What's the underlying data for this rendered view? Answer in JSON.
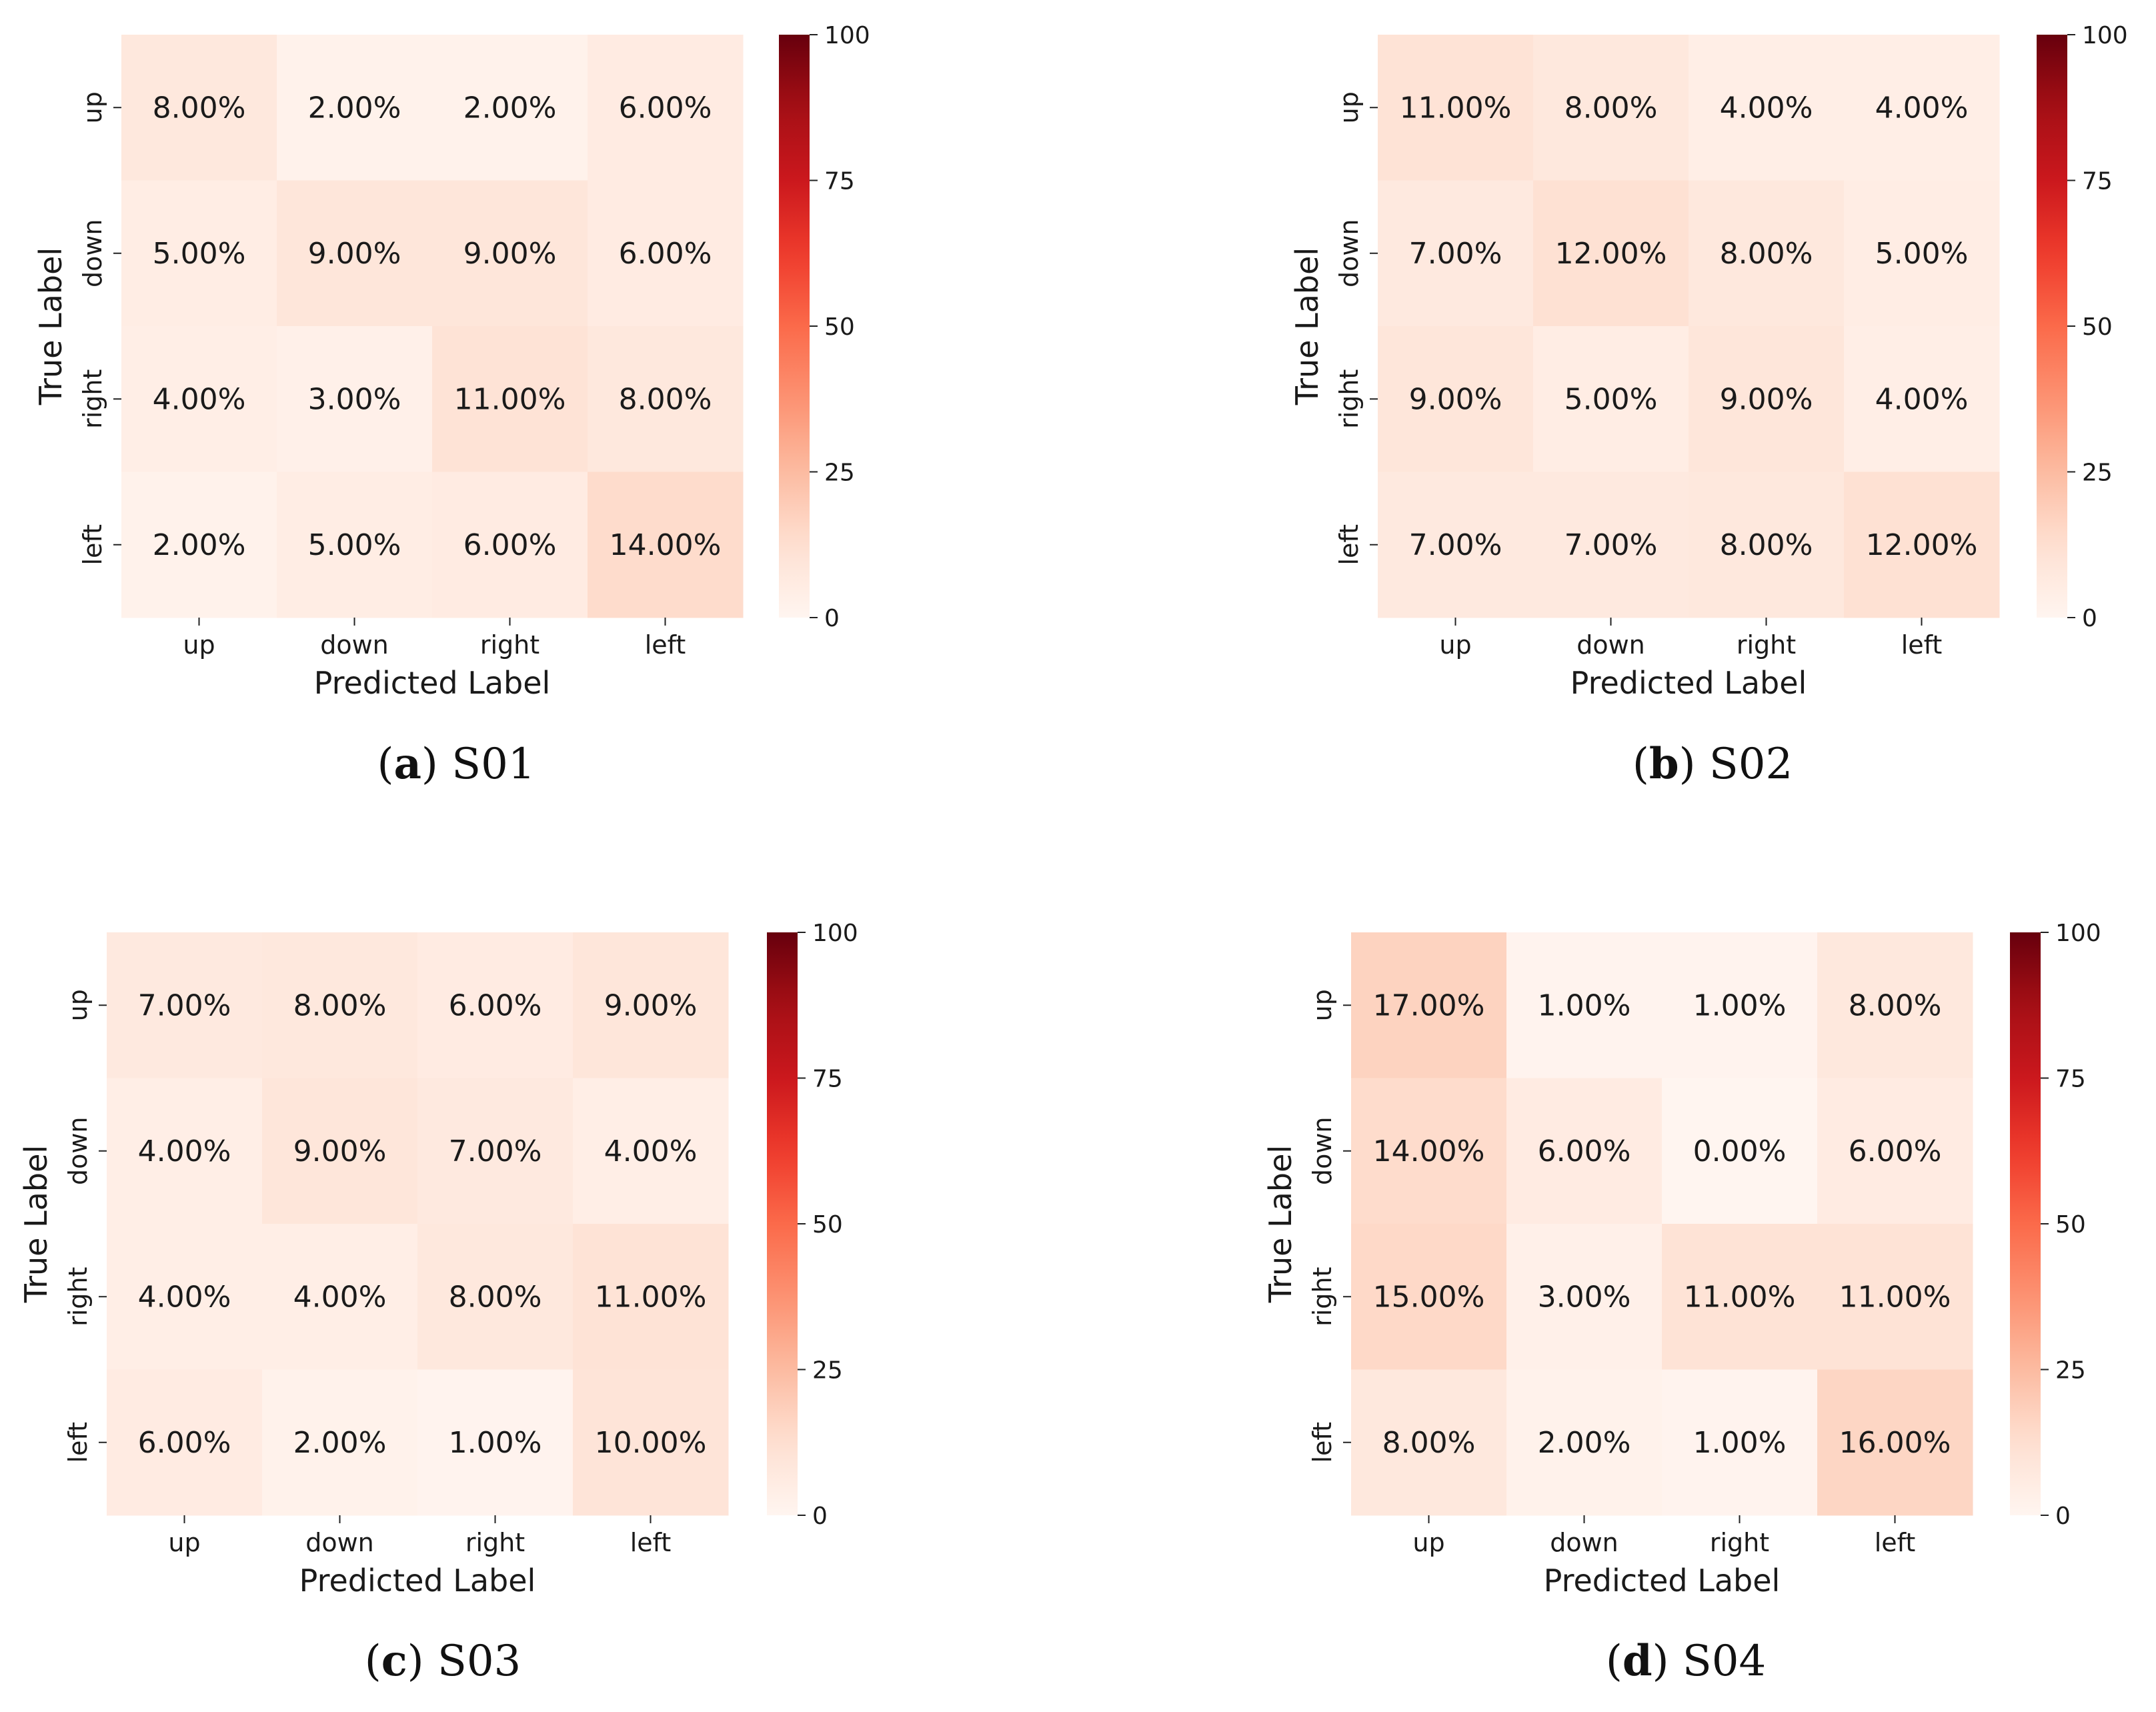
{
  "chart_data": [
    {
      "type": "heatmap",
      "title": "",
      "caption_letter": "a",
      "caption_text": "S01",
      "xlabel": "Predicted Label",
      "ylabel": "True Label",
      "x_categories": [
        "up",
        "down",
        "right",
        "left"
      ],
      "y_categories": [
        "up",
        "down",
        "right",
        "left"
      ],
      "values": [
        [
          8,
          2,
          2,
          6
        ],
        [
          5,
          9,
          9,
          6
        ],
        [
          4,
          3,
          11,
          8
        ],
        [
          2,
          5,
          6,
          14
        ]
      ],
      "value_labels": [
        [
          "8.00%",
          "2.00%",
          "2.00%",
          "6.00%"
        ],
        [
          "5.00%",
          "9.00%",
          "9.00%",
          "6.00%"
        ],
        [
          "4.00%",
          "3.00%",
          "11.00%",
          "8.00%"
        ],
        [
          "2.00%",
          "5.00%",
          "6.00%",
          "14.00%"
        ]
      ],
      "colorbar": {
        "min": 0,
        "max": 100,
        "ticks": [
          0,
          25,
          50,
          75,
          100
        ],
        "tick_labels": [
          "0",
          "25",
          "50",
          "75",
          "100"
        ]
      }
    },
    {
      "type": "heatmap",
      "title": "",
      "caption_letter": "b",
      "caption_text": "S02",
      "xlabel": "Predicted Label",
      "ylabel": "True Label",
      "x_categories": [
        "up",
        "down",
        "right",
        "left"
      ],
      "y_categories": [
        "up",
        "down",
        "right",
        "left"
      ],
      "values": [
        [
          11,
          8,
          4,
          4
        ],
        [
          7,
          12,
          8,
          5
        ],
        [
          9,
          5,
          9,
          4
        ],
        [
          7,
          7,
          8,
          12
        ]
      ],
      "value_labels": [
        [
          "11.00%",
          "8.00%",
          "4.00%",
          "4.00%"
        ],
        [
          "7.00%",
          "12.00%",
          "8.00%",
          "5.00%"
        ],
        [
          "9.00%",
          "5.00%",
          "9.00%",
          "4.00%"
        ],
        [
          "7.00%",
          "7.00%",
          "8.00%",
          "12.00%"
        ]
      ],
      "colorbar": {
        "min": 0,
        "max": 100,
        "ticks": [
          0,
          25,
          50,
          75,
          100
        ],
        "tick_labels": [
          "0",
          "25",
          "50",
          "75",
          "100"
        ]
      }
    },
    {
      "type": "heatmap",
      "title": "",
      "caption_letter": "c",
      "caption_text": "S03",
      "xlabel": "Predicted Label",
      "ylabel": "True Label",
      "x_categories": [
        "up",
        "down",
        "right",
        "left"
      ],
      "y_categories": [
        "up",
        "down",
        "right",
        "left"
      ],
      "values": [
        [
          7,
          8,
          6,
          9
        ],
        [
          4,
          9,
          7,
          4
        ],
        [
          4,
          4,
          8,
          11
        ],
        [
          6,
          2,
          1,
          10
        ]
      ],
      "value_labels": [
        [
          "7.00%",
          "8.00%",
          "6.00%",
          "9.00%"
        ],
        [
          "4.00%",
          "9.00%",
          "7.00%",
          "4.00%"
        ],
        [
          "4.00%",
          "4.00%",
          "8.00%",
          "11.00%"
        ],
        [
          "6.00%",
          "2.00%",
          "1.00%",
          "10.00%"
        ]
      ],
      "colorbar": {
        "min": 0,
        "max": 100,
        "ticks": [
          0,
          25,
          50,
          75,
          100
        ],
        "tick_labels": [
          "0",
          "25",
          "50",
          "75",
          "100"
        ]
      }
    },
    {
      "type": "heatmap",
      "title": "",
      "caption_letter": "d",
      "caption_text": "S04",
      "xlabel": "Predicted Label",
      "ylabel": "True Label",
      "x_categories": [
        "up",
        "down",
        "right",
        "left"
      ],
      "y_categories": [
        "up",
        "down",
        "right",
        "left"
      ],
      "values": [
        [
          17,
          1,
          1,
          8
        ],
        [
          14,
          6,
          0,
          6
        ],
        [
          15,
          3,
          11,
          11
        ],
        [
          8,
          2,
          1,
          16
        ]
      ],
      "value_labels": [
        [
          "17.00%",
          "1.00%",
          "1.00%",
          "8.00%"
        ],
        [
          "14.00%",
          "6.00%",
          "0.00%",
          "6.00%"
        ],
        [
          "15.00%",
          "3.00%",
          "11.00%",
          "11.00%"
        ],
        [
          "8.00%",
          "2.00%",
          "1.00%",
          "16.00%"
        ]
      ],
      "colorbar": {
        "min": 0,
        "max": 100,
        "ticks": [
          0,
          25,
          50,
          75,
          100
        ],
        "tick_labels": [
          "0",
          "25",
          "50",
          "75",
          "100"
        ]
      }
    }
  ],
  "colormap": {
    "name": "Reds",
    "stops": [
      "#fff5f0",
      "#fee0d2",
      "#fcbba1",
      "#fc9272",
      "#fb6a4a",
      "#ef3b2c",
      "#cb181d",
      "#a50f15",
      "#67000d"
    ]
  }
}
